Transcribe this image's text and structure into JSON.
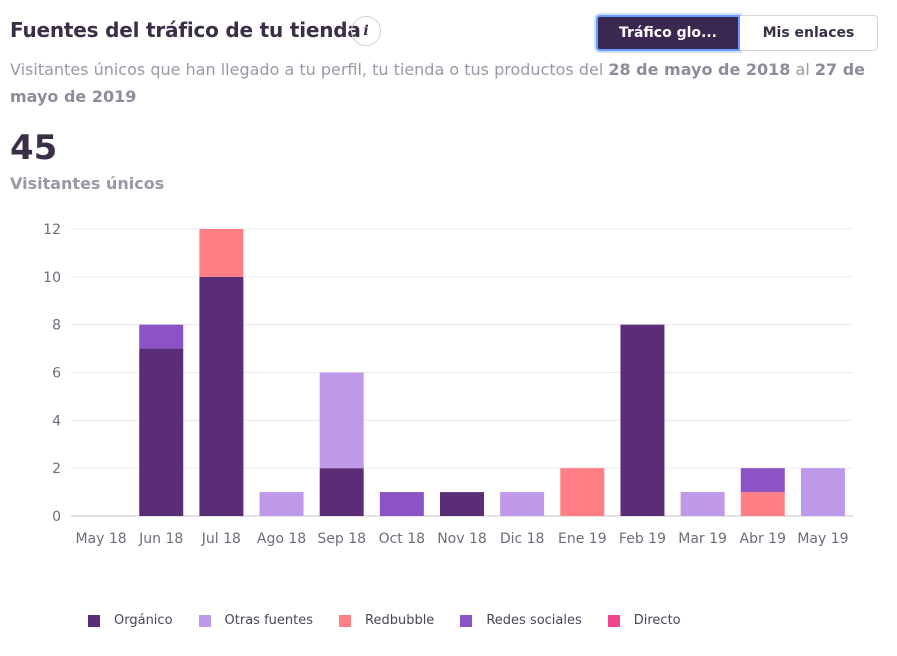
{
  "header": {
    "title": "Fuentes del tráfico de tu tienda",
    "info_label": "i",
    "tabs": [
      {
        "label": "Tráfico glo...",
        "active": true
      },
      {
        "label": "Mis enlaces",
        "active": false
      }
    ]
  },
  "subtitle": {
    "prefix": "Visitantes únicos que han llegado a tu perfil, tu tienda o tus productos del ",
    "start_date": "28 de mayo de 2018",
    "middle": " al ",
    "end_date": "27 de mayo de 2019"
  },
  "summary": {
    "value": "45",
    "label": "Visitantes únicos"
  },
  "chart_data": {
    "type": "bar",
    "stacked": true,
    "categories": [
      "May 18",
      "Jun 18",
      "Jul 18",
      "Ago 18",
      "Sep 18",
      "Oct 18",
      "Nov 18",
      "Dic 18",
      "Ene 19",
      "Feb 19",
      "Mar 19",
      "Abr 19",
      "May 19"
    ],
    "series": [
      {
        "name": "Orgánico",
        "color": "#5b2d77",
        "values": [
          0,
          7,
          10,
          0,
          2,
          0,
          1,
          0,
          0,
          8,
          0,
          0,
          0
        ]
      },
      {
        "name": "Otras fuentes",
        "color": "#bd99e8",
        "values": [
          0,
          0,
          0,
          1,
          4,
          0,
          0,
          1,
          0,
          0,
          1,
          0,
          2
        ]
      },
      {
        "name": "Redbubble",
        "color": "#ff7f84",
        "values": [
          0,
          0,
          2,
          0,
          0,
          0,
          0,
          0,
          2,
          0,
          0,
          1,
          0
        ]
      },
      {
        "name": "Redes sociales",
        "color": "#8c52c6",
        "values": [
          0,
          1,
          0,
          0,
          0,
          1,
          0,
          0,
          0,
          0,
          0,
          1,
          0
        ]
      },
      {
        "name": "Directo",
        "color": "#f0458b",
        "values": [
          0,
          0,
          0,
          0,
          0,
          0,
          0,
          0,
          0,
          0,
          0,
          0,
          0
        ]
      }
    ],
    "yticks": [
      0,
      2,
      4,
      6,
      8,
      10,
      12
    ],
    "ylim": [
      0,
      12
    ],
    "grid": true,
    "legend_position": "bottom-left"
  }
}
